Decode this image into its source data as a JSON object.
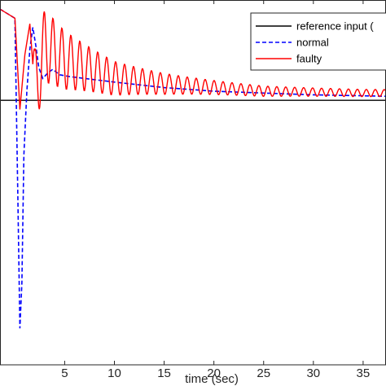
{
  "chart_data": {
    "type": "line",
    "xlabel": "time (sec)",
    "ylabel": "",
    "title": "",
    "xlim": [
      -1.5,
      37.3
    ],
    "ylim": [
      -1.45,
      0.55
    ],
    "xticks": [
      5,
      10,
      15,
      20,
      25,
      30,
      35
    ],
    "xtick_labels": [
      "5",
      "10",
      "15",
      "20",
      "25",
      "30",
      "35"
    ],
    "grid": false,
    "legend_position": "top-right",
    "series": [
      {
        "name": "reference input (",
        "style": "solid",
        "color": "#000000",
        "x": [
          -1.5,
          37.3
        ],
        "y": [
          0,
          0
        ]
      },
      {
        "name": "normal",
        "style": "dashed",
        "color": "#0000ff",
        "x": [
          -1.5,
          0.0,
          0.3,
          0.5,
          0.7,
          0.9,
          1.2,
          1.5,
          1.8,
          2.1,
          2.4,
          2.8,
          3.3,
          3.8,
          4.5,
          5.5,
          7,
          10,
          15,
          20,
          25,
          30,
          35,
          37.3
        ],
        "y": [
          0.5,
          0.45,
          -0.55,
          -1.25,
          -1.0,
          -0.3,
          0.05,
          0.28,
          0.4,
          0.3,
          0.18,
          0.12,
          0.15,
          0.17,
          0.14,
          0.13,
          0.12,
          0.1,
          0.07,
          0.05,
          0.04,
          0.03,
          0.025,
          0.022
        ]
      },
      {
        "name": "faulty",
        "style": "solid",
        "color": "#ff0000",
        "decay_envelope": {
          "start": 0.42,
          "end": 0.03,
          "period": 0.9
        },
        "x": [
          -1.5,
          0.0,
          0.5,
          1.0,
          1.5,
          2.0,
          3,
          5,
          7,
          10,
          15,
          20,
          25,
          30,
          35,
          37.3
        ],
        "y": [
          0.5,
          0.45,
          -0.05,
          0.25,
          0.42,
          0.05,
          0.3,
          0.22,
          0.18,
          0.12,
          0.09,
          0.07,
          0.05,
          0.045,
          0.04,
          0.04
        ]
      }
    ],
    "legend": [
      {
        "label": "reference input (",
        "color": "#000000",
        "style": "solid"
      },
      {
        "label": "normal",
        "color": "#0000ff",
        "style": "dashed"
      },
      {
        "label": "faulty",
        "color": "#ff0000",
        "style": "solid"
      }
    ]
  }
}
